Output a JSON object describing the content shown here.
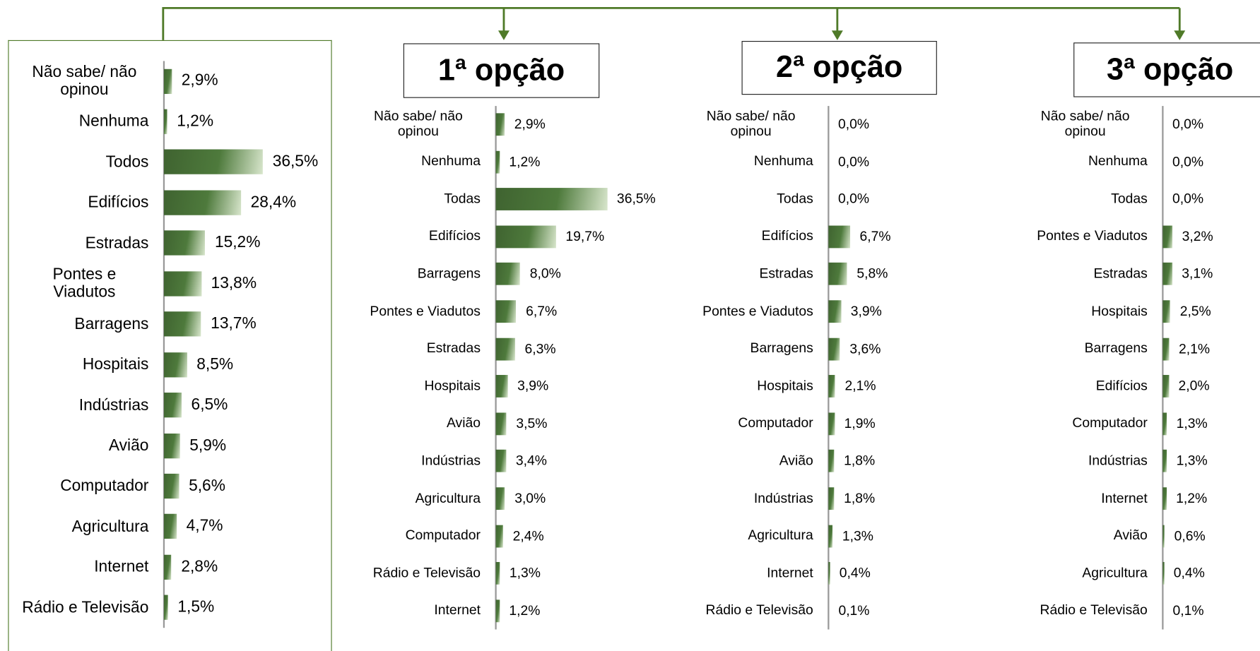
{
  "chart_data": [
    {
      "type": "bar",
      "orientation": "horizontal",
      "color": "#3f6330",
      "xlim": [
        0,
        40
      ],
      "categories": [
        "Não sabe/ não opinou",
        "Nenhuma",
        "Todos",
        "Edifícios",
        "Estradas",
        "Pontes e Viadutos",
        "Barragens",
        "Hospitais",
        "Indústrias",
        "Avião",
        "Computador",
        "Agricultura",
        "Internet",
        "Rádio e Televisão"
      ],
      "values": [
        2.9,
        1.2,
        36.5,
        28.4,
        15.2,
        13.8,
        13.7,
        8.5,
        6.5,
        5.9,
        5.6,
        4.7,
        2.8,
        1.5
      ],
      "value_labels": [
        "2,9%",
        "1,2%",
        "36,5%",
        "28,4%",
        "15,2%",
        "13,8%",
        "13,7%",
        "8,5%",
        "6,5%",
        "5,9%",
        "5,6%",
        "4,7%",
        "2,8%",
        "1,5%"
      ]
    },
    {
      "type": "bar",
      "orientation": "horizontal",
      "title": "1ª opção",
      "color": "#3f6330",
      "xlim": [
        0,
        40
      ],
      "categories": [
        "Não sabe/ não opinou",
        "Nenhuma",
        "Todas",
        "Edifícios",
        "Barragens",
        "Pontes e Viadutos",
        "Estradas",
        "Hospitais",
        "Avião",
        "Indústrias",
        "Agricultura",
        "Computador",
        "Rádio e Televisão",
        "Internet"
      ],
      "values": [
        2.9,
        1.2,
        36.5,
        19.7,
        8.0,
        6.7,
        6.3,
        3.9,
        3.5,
        3.4,
        3.0,
        2.4,
        1.3,
        1.2
      ],
      "value_labels": [
        "2,9%",
        "1,2%",
        "36,5%",
        "19,7%",
        "8,0%",
        "6,7%",
        "6,3%",
        "3,9%",
        "3,5%",
        "3,4%",
        "3,0%",
        "2,4%",
        "1,3%",
        "1,2%"
      ]
    },
    {
      "type": "bar",
      "orientation": "horizontal",
      "title": "2ª opção",
      "color": "#3f6330",
      "xlim": [
        0,
        40
      ],
      "categories": [
        "Não sabe/ não opinou",
        "Nenhuma",
        "Todas",
        "Edifícios",
        "Estradas",
        "Pontes e Viadutos",
        "Barragens",
        "Hospitais",
        "Computador",
        "Avião",
        "Indústrias",
        "Agricultura",
        "Internet",
        "Rádio e Televisão"
      ],
      "values": [
        0.0,
        0.0,
        0.0,
        6.7,
        5.8,
        3.9,
        3.6,
        2.1,
        1.9,
        1.8,
        1.8,
        1.3,
        0.4,
        0.1
      ],
      "value_labels": [
        "0,0%",
        "0,0%",
        "0,0%",
        "6,7%",
        "5,8%",
        "3,9%",
        "3,6%",
        "2,1%",
        "1,9%",
        "1,8%",
        "1,8%",
        "1,3%",
        "0,4%",
        "0,1%"
      ]
    },
    {
      "type": "bar",
      "orientation": "horizontal",
      "title": "3ª opção",
      "color": "#3f6330",
      "xlim": [
        0,
        40
      ],
      "categories": [
        "Não sabe/ não opinou",
        "Nenhuma",
        "Todas",
        "Pontes e Viadutos",
        "Estradas",
        "Hospitais",
        "Barragens",
        "Edifícios",
        "Computador",
        "Indústrias",
        "Internet",
        "Avião",
        "Agricultura",
        "Rádio e Televisão"
      ],
      "values": [
        0.0,
        0.0,
        0.0,
        3.2,
        3.1,
        2.5,
        2.1,
        2.0,
        1.3,
        1.3,
        1.2,
        0.6,
        0.4,
        0.1
      ],
      "value_labels": [
        "0,0%",
        "0,0%",
        "0,0%",
        "3,2%",
        "3,1%",
        "2,5%",
        "2,1%",
        "2,0%",
        "1,3%",
        "1,3%",
        "1,2%",
        "0,6%",
        "0,4%",
        "0,1%"
      ]
    }
  ]
}
